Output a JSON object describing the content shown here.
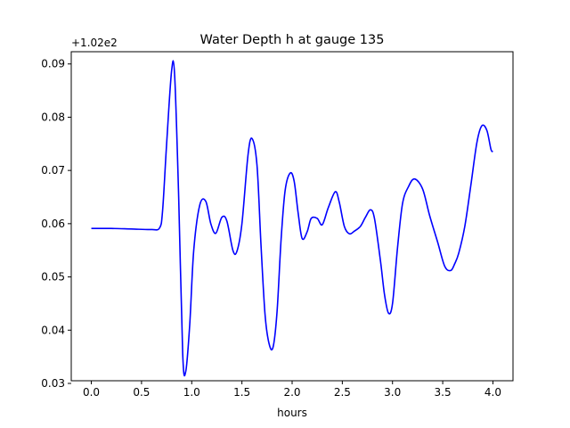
{
  "chart_data": {
    "type": "line",
    "title": "Water Depth h at gauge 135",
    "xlabel": "hours",
    "ylabel": "",
    "offset_label": "+1.02e2",
    "xlim": [
      -0.2,
      4.2
    ],
    "ylim": [
      0.0305,
      0.0923
    ],
    "xticks": [
      0.0,
      0.5,
      1.0,
      1.5,
      2.0,
      2.5,
      3.0,
      3.5,
      4.0
    ],
    "xtick_labels": [
      "0.0",
      "0.5",
      "1.0",
      "1.5",
      "2.0",
      "2.5",
      "3.0",
      "3.5",
      "4.0"
    ],
    "yticks": [
      0.03,
      0.04,
      0.05,
      0.06,
      0.07,
      0.08,
      0.09
    ],
    "ytick_labels": [
      "0.03",
      "0.04",
      "0.05",
      "0.06",
      "0.07",
      "0.08",
      "0.09"
    ],
    "grid": false,
    "series": [
      {
        "color": "#0000ff",
        "x": [
          0.0,
          0.2,
          0.4,
          0.6,
          0.68,
          0.71,
          0.75,
          0.8,
          0.83,
          0.87,
          0.91,
          0.94,
          0.98,
          1.02,
          1.08,
          1.14,
          1.19,
          1.24,
          1.3,
          1.35,
          1.41,
          1.45,
          1.5,
          1.56,
          1.6,
          1.65,
          1.69,
          1.73,
          1.77,
          1.81,
          1.85,
          1.89,
          1.93,
          1.98,
          2.02,
          2.06,
          2.1,
          2.15,
          2.19,
          2.25,
          2.3,
          2.36,
          2.43,
          2.47,
          2.52,
          2.57,
          2.62,
          2.68,
          2.73,
          2.78,
          2.82,
          2.88,
          2.92,
          2.96,
          3.0,
          3.05,
          3.1,
          3.16,
          3.22,
          3.3,
          3.37,
          3.45,
          3.52,
          3.58,
          3.62,
          3.66,
          3.72,
          3.78,
          3.84,
          3.89,
          3.94,
          3.98,
          4.0
        ],
        "y": [
          0.0591,
          0.0591,
          0.059,
          0.0589,
          0.0592,
          0.0625,
          0.075,
          0.0888,
          0.0878,
          0.065,
          0.0356,
          0.0322,
          0.041,
          0.055,
          0.0635,
          0.0642,
          0.06,
          0.0582,
          0.0612,
          0.0605,
          0.055,
          0.0548,
          0.06,
          0.0728,
          0.076,
          0.071,
          0.056,
          0.043,
          0.0375,
          0.0368,
          0.0435,
          0.057,
          0.0662,
          0.0695,
          0.068,
          0.062,
          0.0572,
          0.0585,
          0.061,
          0.061,
          0.0598,
          0.063,
          0.066,
          0.064,
          0.0595,
          0.0581,
          0.0586,
          0.0595,
          0.0612,
          0.0626,
          0.061,
          0.053,
          0.0467,
          0.0432,
          0.045,
          0.0555,
          0.0638,
          0.067,
          0.0684,
          0.0665,
          0.0615,
          0.0565,
          0.052,
          0.0512,
          0.0525,
          0.0545,
          0.0595,
          0.0672,
          0.0752,
          0.0784,
          0.0775,
          0.074,
          0.0735
        ]
      }
    ]
  }
}
